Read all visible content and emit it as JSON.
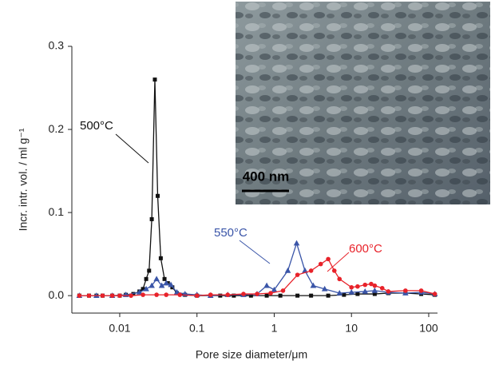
{
  "chart_data": {
    "type": "line",
    "x_label": "Pore size diameter/μm",
    "y_label": "Incr. intr. vol. / ml g⁻¹",
    "log_x": true,
    "xlim": [
      0.0024,
      130
    ],
    "ylim": [
      -0.021,
      0.3
    ],
    "xticks": [
      0.01,
      0.1,
      1,
      10,
      100
    ],
    "yticks": [
      {
        "value": 0,
        "label": "0.0"
      },
      0.1,
      0.2,
      0.3
    ],
    "inset_scale_bar": "400 nm",
    "series": [
      {
        "name": "500°C",
        "color": "#111111",
        "marker": "square",
        "x": [
          0.003,
          0.004,
          0.005,
          0.006,
          0.008,
          0.01,
          0.012,
          0.015,
          0.018,
          0.02,
          0.022,
          0.024,
          0.026,
          0.0285,
          0.031,
          0.034,
          0.038,
          0.042,
          0.048,
          0.055,
          0.07,
          0.1,
          0.15,
          0.2,
          0.3,
          0.5,
          0.8,
          1.2,
          2,
          3,
          5,
          8,
          12,
          20,
          30,
          50,
          80,
          120
        ],
        "values": [
          0,
          0,
          0,
          0,
          0,
          0,
          0.001,
          0.002,
          0.005,
          0.008,
          0.02,
          0.03,
          0.092,
          0.26,
          0.12,
          0.045,
          0.02,
          0.015,
          0.01,
          0.003,
          0.001,
          0,
          0,
          0,
          0,
          0,
          0,
          0,
          0,
          0,
          0,
          0.001,
          0.002,
          0.002,
          0.003,
          0.003,
          0.002,
          0.001
        ]
      },
      {
        "name": "550°C",
        "color": "#3a55a8",
        "marker": "triangle",
        "x": [
          0.003,
          0.005,
          0.008,
          0.012,
          0.018,
          0.022,
          0.026,
          0.03,
          0.035,
          0.04,
          0.046,
          0.055,
          0.07,
          0.1,
          0.15,
          0.25,
          0.4,
          0.6,
          0.8,
          1,
          1.5,
          1.95,
          2.5,
          3.2,
          4.5,
          7,
          10,
          15,
          20,
          30,
          50,
          80,
          120
        ],
        "values": [
          0,
          0,
          0,
          0.001,
          0.004,
          0.008,
          0.012,
          0.02,
          0.012,
          0.015,
          0.013,
          0.004,
          0.002,
          0.001,
          0,
          0.001,
          0.001,
          0.002,
          0.012,
          0.007,
          0.03,
          0.063,
          0.03,
          0.012,
          0.008,
          0.003,
          0.004,
          0.005,
          0.006,
          0.004,
          0.003,
          0.004,
          0.002
        ]
      },
      {
        "name": "600°C",
        "color": "#e8222a",
        "marker": "circle",
        "x": [
          0.003,
          0.004,
          0.006,
          0.008,
          0.01,
          0.014,
          0.02,
          0.03,
          0.04,
          0.06,
          0.1,
          0.15,
          0.25,
          0.4,
          0.6,
          0.9,
          1.3,
          2,
          3,
          4,
          5,
          6,
          7,
          10,
          12,
          15,
          18,
          20,
          25,
          30,
          50,
          80,
          120
        ],
        "values": [
          0,
          0,
          0,
          0,
          0,
          0,
          0.001,
          0.001,
          0.001,
          0.001,
          0,
          0.001,
          0.001,
          0.002,
          0.002,
          0.003,
          0.006,
          0.025,
          0.03,
          0.038,
          0.044,
          0.03,
          0.02,
          0.01,
          0.011,
          0.013,
          0.014,
          0.012,
          0.009,
          0.005,
          0.006,
          0.006,
          0.002
        ]
      }
    ]
  }
}
